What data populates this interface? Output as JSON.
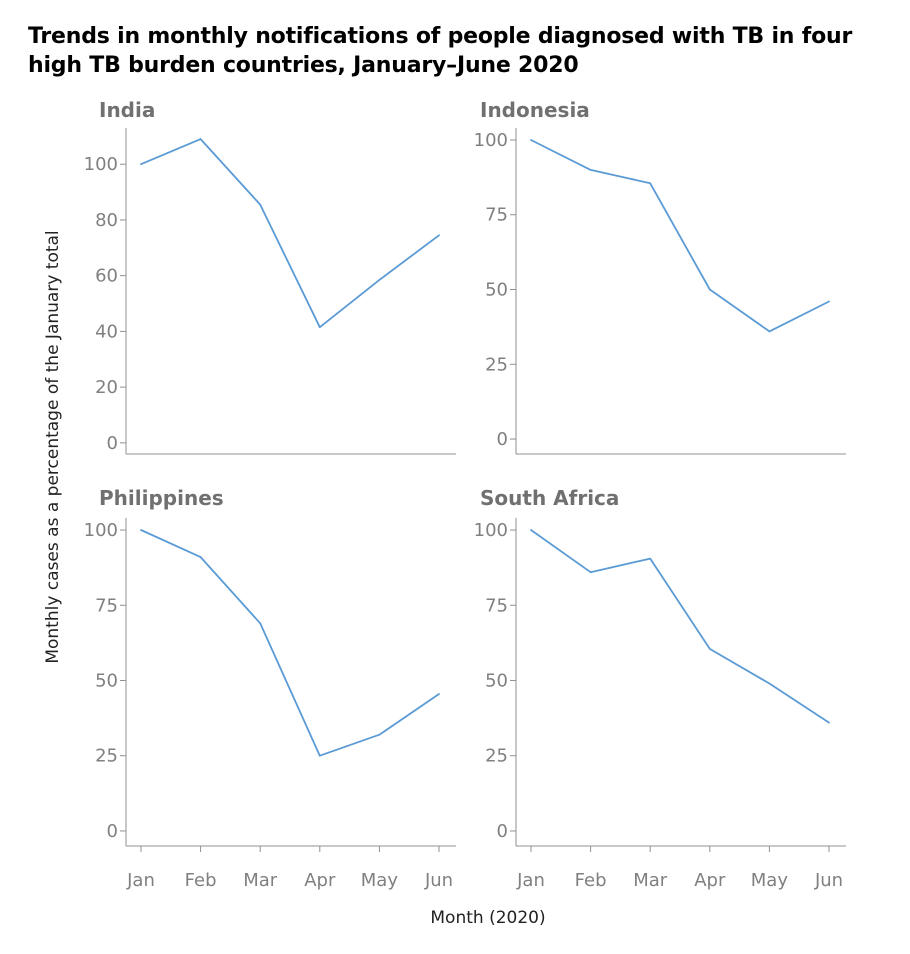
{
  "title": "Trends in monthly notifications of people diagnosed with TB in four high TB burden countries, January–June 2020",
  "xlabel": "Month (2020)",
  "ylabel": "Monthly cases as a percentage of the January total",
  "colors": {
    "line": "#5b9bd5",
    "axis": "#909090",
    "panel_title": "#707070",
    "tick": "#808080"
  },
  "chart_data": [
    {
      "type": "line",
      "title": "India",
      "categories": [
        "Jan",
        "Feb",
        "Mar",
        "Apr",
        "May",
        "Jun"
      ],
      "values": [
        100,
        109,
        85.5,
        41.5,
        58.5,
        74.5
      ],
      "yticks": [
        0,
        20,
        40,
        60,
        80,
        100
      ],
      "ylim": [
        -4,
        113
      ],
      "show_xticks": false
    },
    {
      "type": "line",
      "title": "Indonesia",
      "categories": [
        "Jan",
        "Feb",
        "Mar",
        "Apr",
        "May",
        "Jun"
      ],
      "values": [
        100,
        90,
        85.5,
        50,
        36,
        46
      ],
      "yticks": [
        0,
        25,
        50,
        75,
        100
      ],
      "ylim": [
        -5,
        104
      ],
      "show_xticks": false
    },
    {
      "type": "line",
      "title": "Philippines",
      "categories": [
        "Jan",
        "Feb",
        "Mar",
        "Apr",
        "May",
        "Jun"
      ],
      "values": [
        100,
        91,
        69,
        25,
        32,
        45.5
      ],
      "yticks": [
        0,
        25,
        50,
        75,
        100
      ],
      "ylim": [
        -5,
        104
      ],
      "show_xticks": true
    },
    {
      "type": "line",
      "title": "South Africa",
      "categories": [
        "Jan",
        "Feb",
        "Mar",
        "Apr",
        "May",
        "Jun"
      ],
      "values": [
        100,
        86,
        90.5,
        60.5,
        49,
        36
      ],
      "yticks": [
        0,
        25,
        50,
        75,
        100
      ],
      "ylim": [
        -5,
        104
      ],
      "show_xticks": true
    }
  ]
}
